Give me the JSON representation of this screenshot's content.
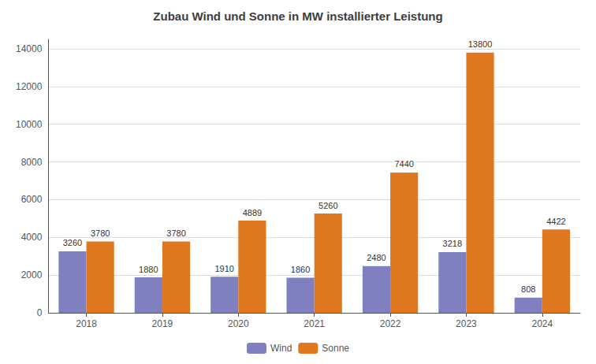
{
  "chart_data": {
    "type": "bar",
    "title": "Zubau Wind und Sonne in MW installierter Leistung",
    "categories": [
      "2018",
      "2019",
      "2020",
      "2021",
      "2022",
      "2023",
      "2024"
    ],
    "series": [
      {
        "name": "Wind",
        "color": "#8080c0",
        "values": [
          3260,
          1880,
          1910,
          1860,
          2480,
          3218,
          808
        ]
      },
      {
        "name": "Sonne",
        "color": "#e07820",
        "values": [
          3780,
          3780,
          4889,
          5260,
          7440,
          13800,
          4422
        ]
      }
    ],
    "ylim": [
      0,
      14500
    ],
    "yticks": [
      0,
      2000,
      4000,
      6000,
      8000,
      10000,
      12000,
      14000
    ],
    "grid": true,
    "legend": "bottom",
    "data_labels": true
  }
}
